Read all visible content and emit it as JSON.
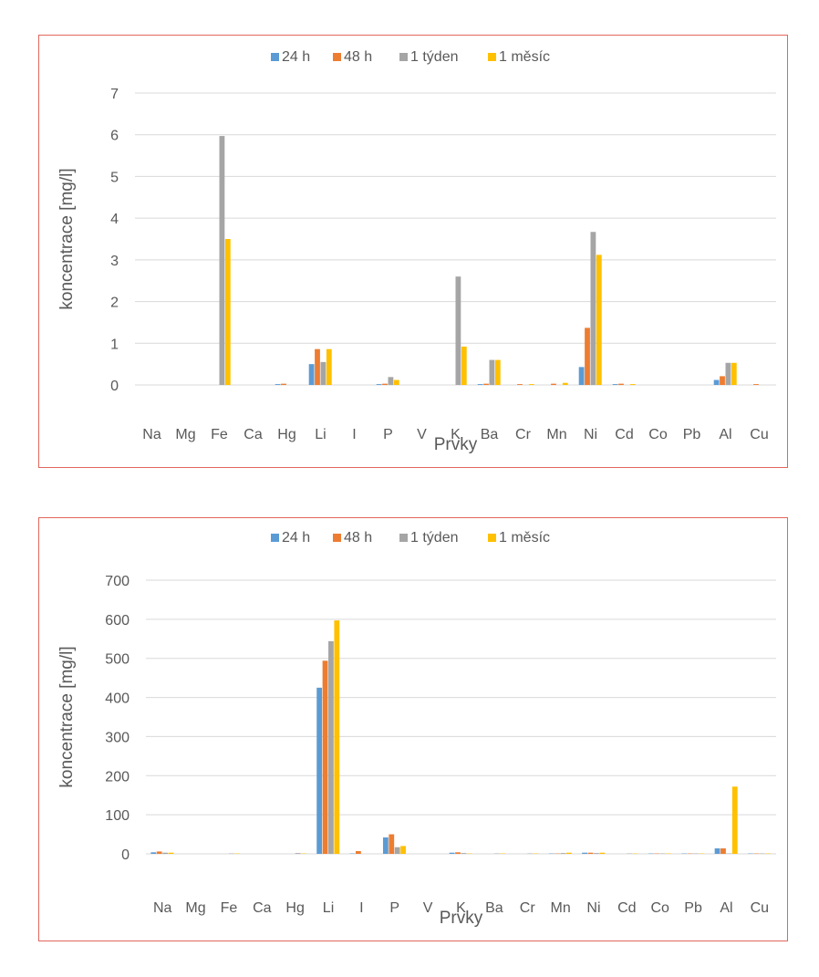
{
  "legend": [
    {
      "label": "24 h",
      "color": "#5b9bd5"
    },
    {
      "label": "48 h",
      "color": "#ed7d31"
    },
    {
      "label": "1 týden",
      "color": "#a5a5a5"
    },
    {
      "label": "1 měsíc",
      "color": "#ffc000"
    }
  ],
  "chart_data": [
    {
      "type": "bar",
      "title": "",
      "xlabel": "Prvky",
      "ylabel": "koncentrace [mg/l]",
      "ylim": [
        0,
        7
      ],
      "yticks": [
        "0",
        "1",
        "2",
        "3",
        "4",
        "5",
        "6",
        "7"
      ],
      "categories": [
        "Na",
        "Mg",
        "Fe",
        "Ca",
        "Hg",
        "Li",
        "I",
        "P",
        "V",
        "K",
        "Ba",
        "Cr",
        "Mn",
        "Ni",
        "Cd",
        "Co",
        "Pb",
        "Al",
        "Cu"
      ],
      "series": [
        {
          "name": "24 h",
          "values": [
            0,
            0,
            0,
            0,
            0.02,
            0.5,
            0,
            0.02,
            0,
            0,
            0.02,
            0,
            0,
            0.43,
            0.02,
            0,
            0,
            0.12,
            0
          ]
        },
        {
          "name": "48 h",
          "values": [
            0,
            0,
            0,
            0,
            0.03,
            0.86,
            0,
            0.03,
            0,
            0,
            0.03,
            0.02,
            0.03,
            1.37,
            0.03,
            0,
            0,
            0.21,
            0.02
          ]
        },
        {
          "name": "1 týden",
          "values": [
            0,
            0,
            5.97,
            0,
            0,
            0.55,
            0,
            0.19,
            0,
            2.6,
            0.6,
            0,
            0,
            3.67,
            0,
            0,
            0,
            0.53,
            0
          ]
        },
        {
          "name": "1 měsíc",
          "values": [
            0,
            0,
            3.5,
            0,
            0,
            0.86,
            0,
            0.12,
            0,
            0.92,
            0.6,
            0.02,
            0.05,
            3.12,
            0.02,
            0,
            0,
            0.53,
            0
          ]
        }
      ]
    },
    {
      "type": "bar",
      "title": "",
      "xlabel": "Prvky",
      "ylabel": "koncentrace  [mg/l]",
      "ylim": [
        0,
        700
      ],
      "yticks": [
        "0",
        "100",
        "200",
        "300",
        "400",
        "500",
        "600",
        "700"
      ],
      "categories": [
        "Na",
        "Mg",
        "Fe",
        "Ca",
        "Hg",
        "Li",
        "I",
        "P",
        "V",
        "K",
        "Ba",
        "Cr",
        "Mn",
        "Ni",
        "Cd",
        "Co",
        "Pb",
        "Al",
        "Cu"
      ],
      "series": [
        {
          "name": "24 h",
          "values": [
            4,
            0,
            0,
            0,
            0,
            425,
            1,
            42,
            0,
            3,
            0,
            0,
            1,
            3,
            0,
            1,
            1,
            14,
            1
          ]
        },
        {
          "name": "48 h",
          "values": [
            6,
            0,
            0,
            0,
            0,
            494,
            7,
            50,
            0,
            4,
            0,
            0,
            1,
            3,
            0,
            1,
            1,
            14,
            1
          ]
        },
        {
          "name": "1 týden",
          "values": [
            3,
            0,
            1,
            0,
            2,
            544,
            0,
            17,
            0,
            2,
            1,
            1,
            2,
            2,
            1,
            1,
            1,
            1,
            1
          ]
        },
        {
          "name": "1 měsíc",
          "values": [
            3,
            0,
            1,
            0,
            1,
            597,
            0,
            20,
            0,
            1,
            1,
            1,
            3,
            3,
            1,
            1,
            1,
            172,
            1
          ]
        }
      ]
    }
  ]
}
